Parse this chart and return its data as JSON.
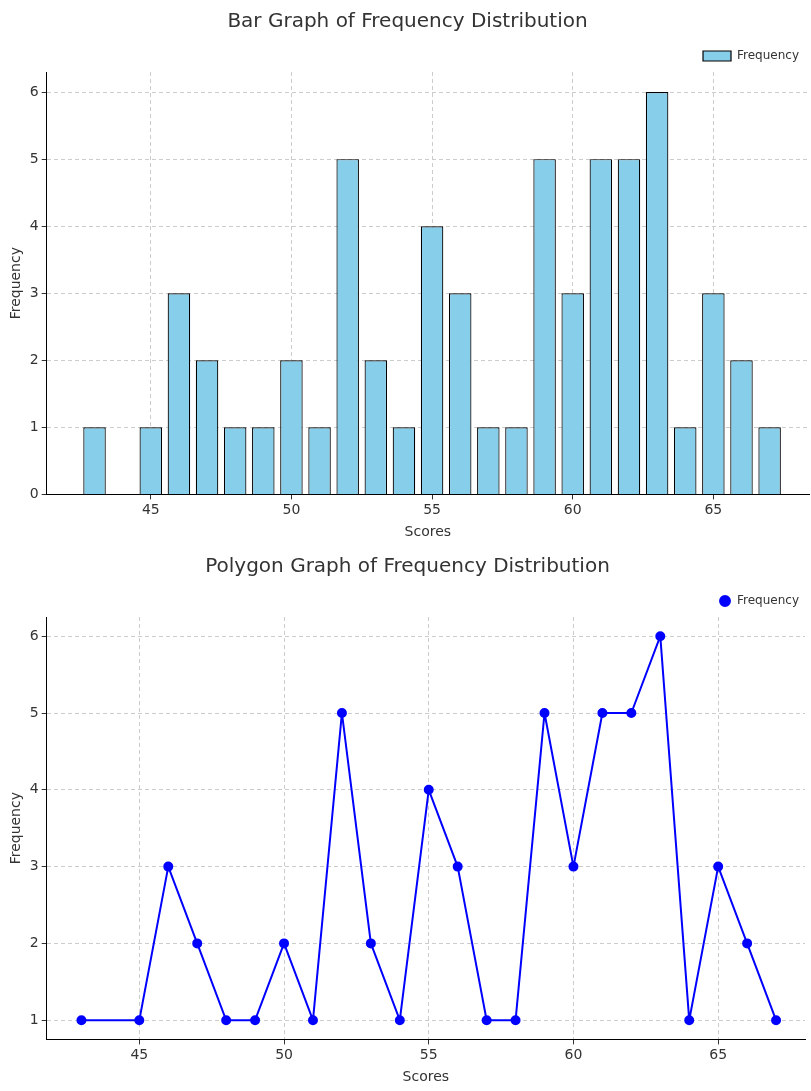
{
  "chart_data": [
    {
      "type": "bar",
      "title": "Bar Graph of Frequency Distribution",
      "xlabel": "Scores",
      "ylabel": "Frequency",
      "x": [
        43,
        45,
        46,
        47,
        48,
        49,
        50,
        51,
        52,
        53,
        54,
        55,
        56,
        57,
        58,
        59,
        60,
        61,
        62,
        63,
        64,
        65,
        66,
        67
      ],
      "series": [
        {
          "name": "Frequency",
          "color": "#87ceeb",
          "values": [
            1,
            1,
            3,
            2,
            1,
            1,
            2,
            1,
            5,
            2,
            1,
            4,
            3,
            1,
            1,
            5,
            3,
            5,
            5,
            6,
            1,
            3,
            2,
            1
          ]
        }
      ],
      "xlim": [
        41.3,
        68.4
      ],
      "xticks": [
        45,
        50,
        55,
        60,
        65
      ],
      "ylim": [
        0,
        6.3
      ],
      "yticks": [
        0,
        1,
        2,
        3,
        4,
        5,
        6
      ],
      "grid": true,
      "legend": "top right"
    },
    {
      "type": "line",
      "title": "Polygon Graph of Frequency Distribution",
      "xlabel": "Scores",
      "ylabel": "Frequency",
      "x": [
        43,
        45,
        46,
        47,
        48,
        49,
        50,
        51,
        52,
        53,
        54,
        55,
        56,
        57,
        58,
        59,
        60,
        61,
        62,
        63,
        64,
        65,
        66,
        67
      ],
      "series": [
        {
          "name": "Frequency",
          "color": "#0000ff",
          "values": [
            1,
            1,
            3,
            2,
            1,
            1,
            2,
            1,
            5,
            2,
            1,
            4,
            3,
            1,
            1,
            5,
            3,
            5,
            5,
            6,
            1,
            3,
            2,
            1
          ]
        }
      ],
      "xlim": [
        41.8,
        68
      ],
      "xticks": [
        45,
        50,
        55,
        60,
        65
      ],
      "ylim": [
        0.75,
        6.25
      ],
      "yticks": [
        1,
        2,
        3,
        4,
        5,
        6
      ],
      "grid": true,
      "legend": "top right",
      "marker": "circle",
      "line_style": "solid"
    }
  ]
}
